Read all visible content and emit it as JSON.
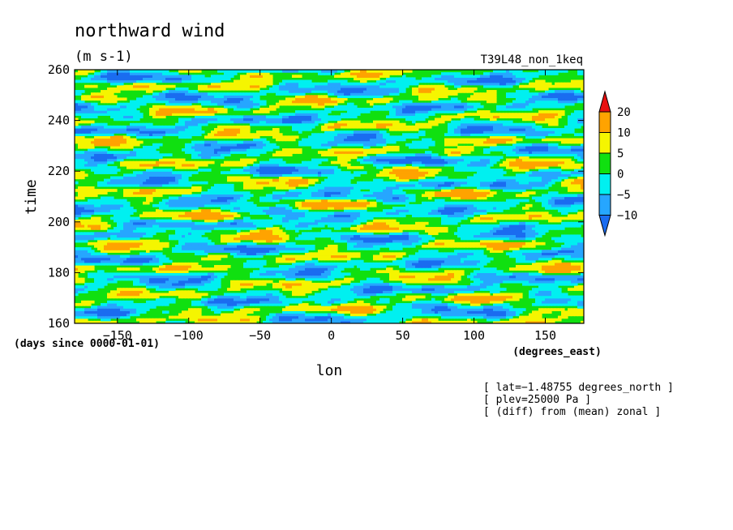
{
  "chart_data": {
    "type": "heatmap",
    "title": "northward wind",
    "units": "(m s-1)",
    "run_label": "T39L48_non_1keq",
    "xlabel": "lon",
    "x_units": "(degrees_east)",
    "ylabel": "time",
    "y_units": "(days since 0000-01-01)",
    "xlim": [
      -180,
      177
    ],
    "ylim": [
      160,
      260
    ],
    "x_ticks": [
      -150,
      -100,
      -50,
      0,
      50,
      100,
      150
    ],
    "y_ticks": [
      160,
      180,
      200,
      220,
      240,
      260
    ],
    "color_levels": [
      -10,
      -5,
      0,
      5,
      10,
      20
    ],
    "colorbar_labels": [
      "20",
      "10",
      "5",
      "0",
      "−5",
      "−10"
    ],
    "colors": [
      "#1a6cf0",
      "#26a6ff",
      "#00f0f0",
      "#10e010",
      "#f5f500",
      "#ffa300",
      "#e80f0f"
    ],
    "notes": [
      "[ lat=−1.48755 degrees_north ]",
      "[ plev=25000 Pa ]",
      "[ (diff) from (mean) zonal ]"
    ]
  }
}
